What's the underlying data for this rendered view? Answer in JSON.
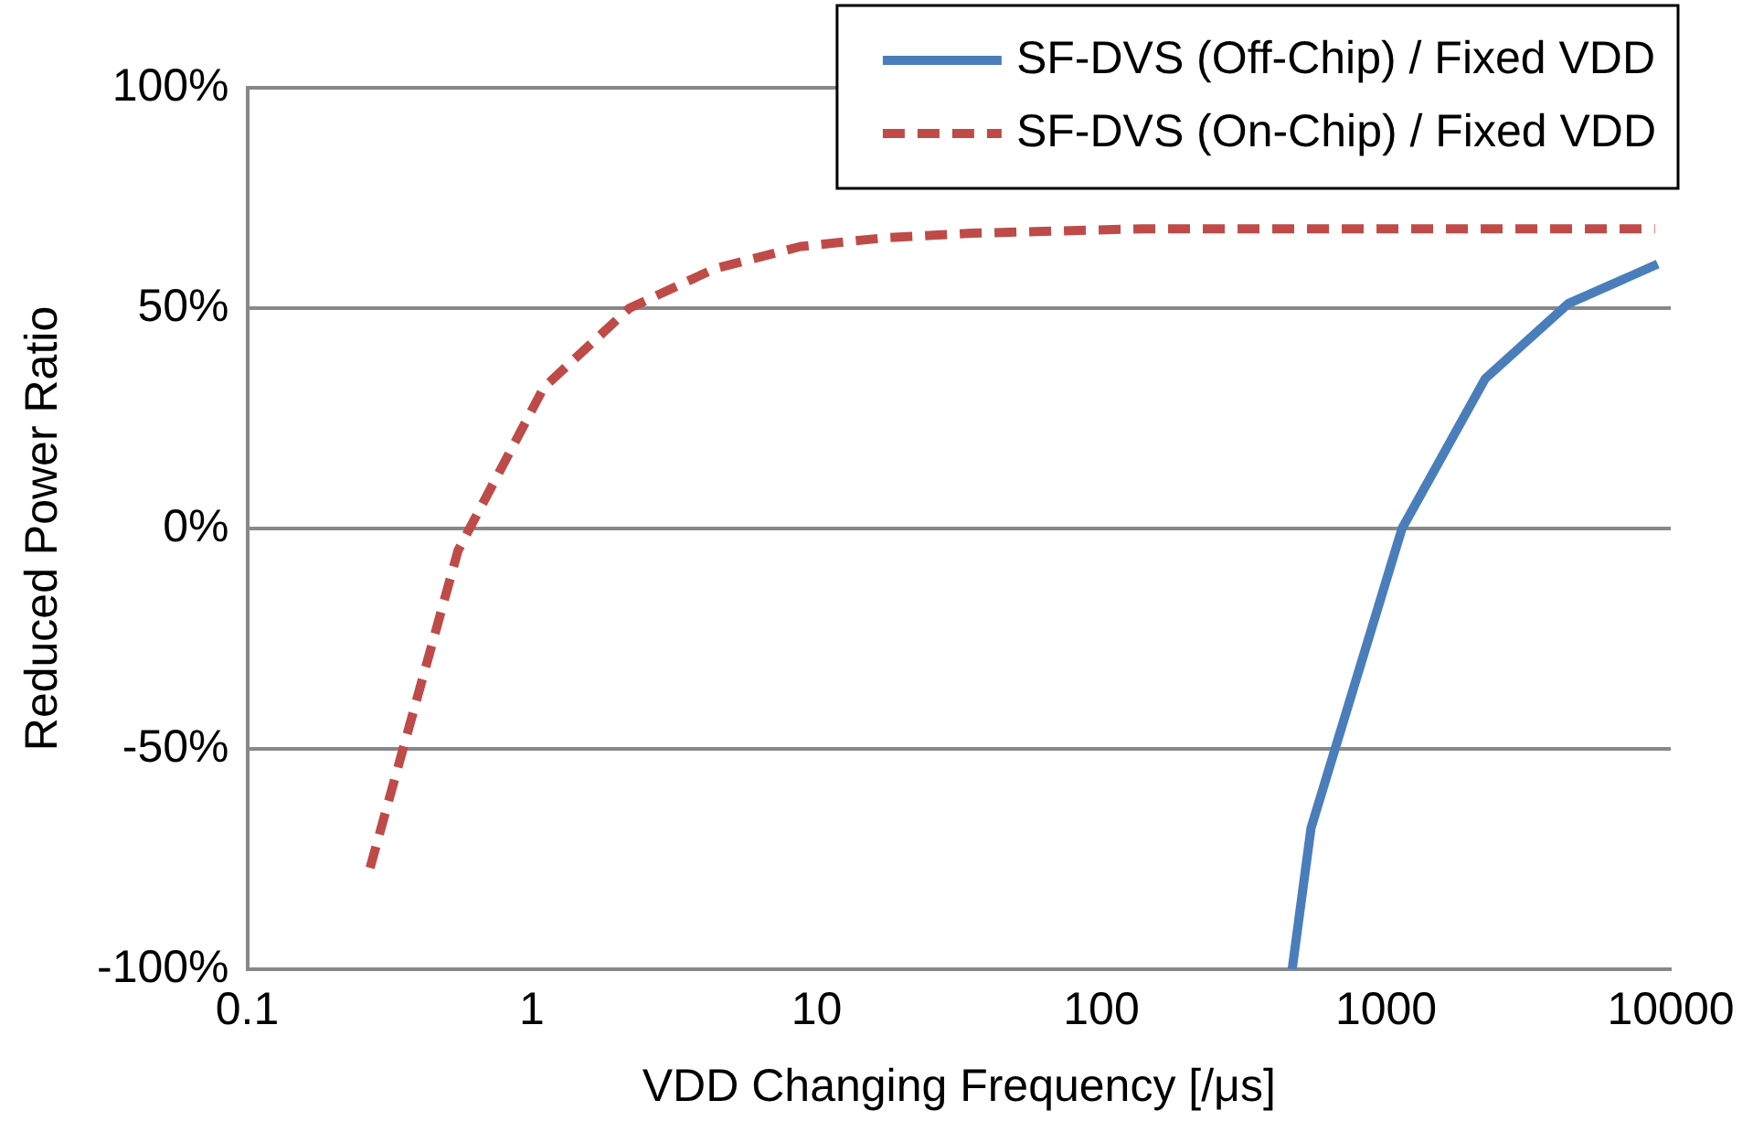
{
  "chart_data": {
    "type": "line",
    "xlabel": "VDD Changing Frequency [/μs]",
    "ylabel": "Reduced Power Ratio",
    "log": "x",
    "xlim": [
      0.1,
      10000
    ],
    "xticks": [
      0.1,
      1,
      10,
      100,
      1000,
      10000
    ],
    "ylim": [
      -100,
      100
    ],
    "yticks": [
      {
        "value": -100,
        "label": "-100%"
      },
      {
        "value": -50,
        "label": "-50%"
      },
      {
        "value": 0,
        "label": "0%"
      },
      {
        "value": 50,
        "label": "50%"
      },
      {
        "value": 100,
        "label": "100%"
      }
    ],
    "grid": "y",
    "legend": "top right",
    "marker": "none",
    "series": [
      {
        "name": "SF-DVS (Off-Chip) / Fixed VDD",
        "color": "#4a7ebb",
        "line_style": "solid",
        "x": [
          468,
          545,
          1138,
          2230,
          4360,
          9000
        ],
        "values": [
          -100,
          -68,
          0,
          34,
          51,
          60
        ]
      },
      {
        "name": "SF-DVS (On-Chip) / Fixed VDD",
        "color": "#be4b48",
        "line_style": "dashed",
        "x": [
          0.27,
          0.55,
          1.1,
          2.2,
          4.4,
          8.8,
          17.6,
          35,
          70,
          140,
          280,
          560,
          1100,
          2200,
          4400,
          8800
        ],
        "values": [
          -77,
          -5,
          32,
          50,
          59,
          64,
          66,
          67,
          67.5,
          68,
          68,
          68,
          68,
          68,
          68,
          68
        ]
      }
    ]
  }
}
